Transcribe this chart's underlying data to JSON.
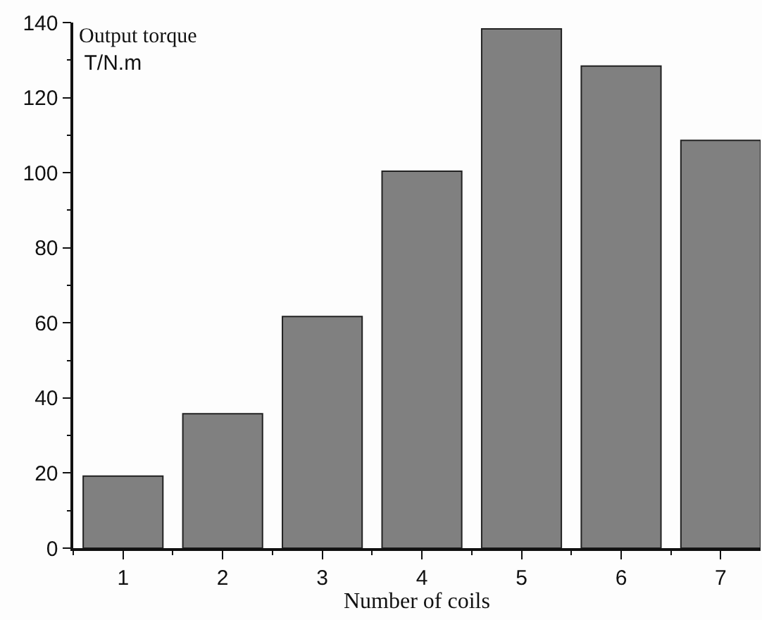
{
  "chart_data": {
    "type": "bar",
    "xlabel": "Number of coils",
    "ylabel": "Output torque\nT/N.m",
    "x": [
      1,
      2,
      3,
      4,
      5,
      6,
      7
    ],
    "values": [
      19.2,
      35.8,
      61.7,
      100.4,
      138.3,
      128.4,
      108.6
    ],
    "color": "#808080",
    "xlim": [
      0.5,
      7.4
    ],
    "xticks": [
      1,
      2,
      3,
      4,
      5,
      6,
      7
    ],
    "ylim": [
      0,
      140
    ],
    "yticks": [
      0,
      20,
      40,
      60,
      80,
      100,
      120,
      140
    ]
  }
}
